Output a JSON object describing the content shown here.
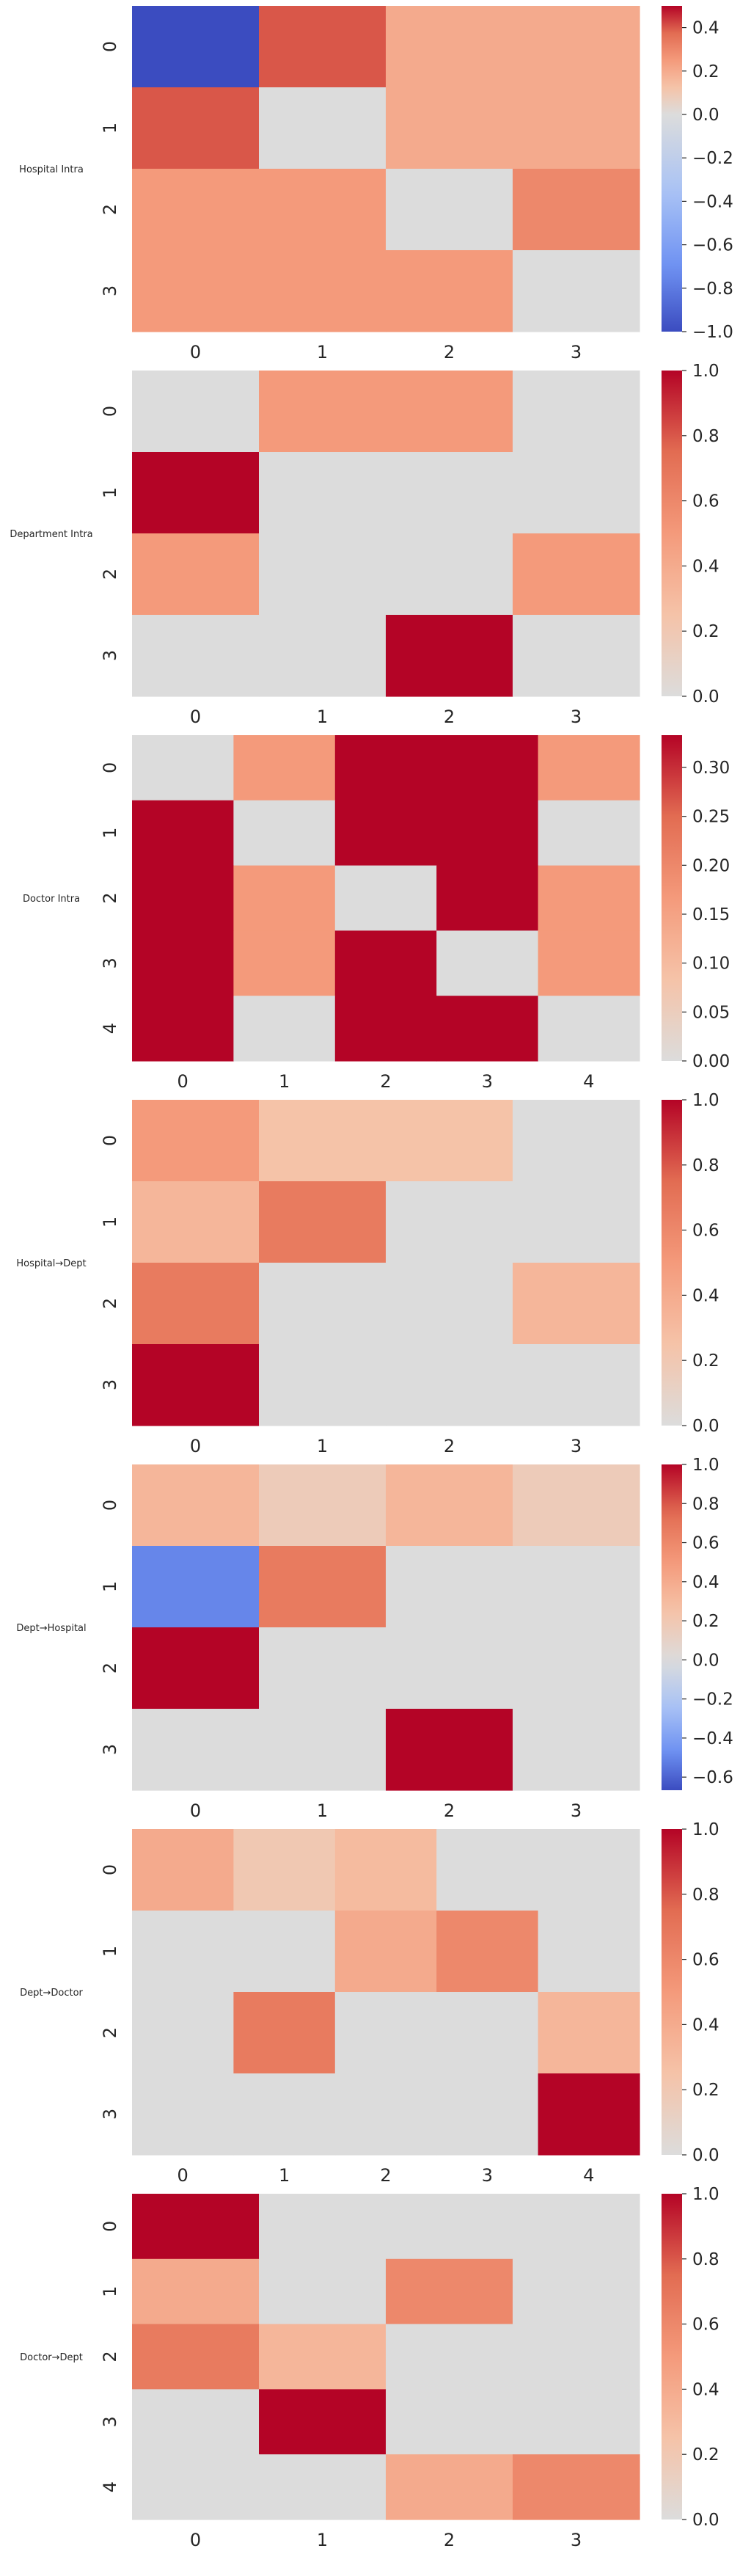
{
  "colors": {
    "neutral": "#dcdcdc",
    "cbar_ticks": "#262626",
    "diverging_low": "#3b4cc0",
    "diverging_high": "#b40426"
  },
  "chart_data": [
    {
      "type": "heatmap",
      "row_label": "Hospital Intra",
      "colormap": "coolwarm",
      "vmin": -1.0,
      "vmax": 0.5,
      "x_ticks": [
        "0",
        "1",
        "2",
        "3"
      ],
      "y_ticks": [
        "0",
        "1",
        "2",
        "3"
      ],
      "values": [
        [
          -1.0,
          0.4,
          0.2,
          0.2
        ],
        [
          0.4,
          0.0,
          0.2,
          0.2
        ],
        [
          0.25,
          0.25,
          0.0,
          0.3
        ],
        [
          0.25,
          0.25,
          0.25,
          0.0
        ]
      ],
      "colorbar_ticks": [
        "0.4",
        "0.2",
        "0.0",
        "−0.2",
        "−0.4",
        "−0.6",
        "−0.8",
        "−1.0"
      ],
      "colorbar_tick_values": [
        0.4,
        0.2,
        0.0,
        -0.2,
        -0.4,
        -0.6,
        -0.8,
        -1.0
      ]
    },
    {
      "type": "heatmap",
      "row_label": "Department Intra",
      "colormap": "coolwarm-positive",
      "vmin": 0.0,
      "vmax": 1.0,
      "x_ticks": [
        "0",
        "1",
        "2",
        "3"
      ],
      "y_ticks": [
        "0",
        "1",
        "2",
        "3"
      ],
      "values": [
        [
          0.0,
          0.5,
          0.5,
          0.0
        ],
        [
          1.0,
          0.0,
          0.0,
          0.0
        ],
        [
          0.5,
          0.0,
          0.0,
          0.5
        ],
        [
          0.0,
          0.0,
          1.0,
          0.0
        ]
      ],
      "colorbar_ticks": [
        "1.0",
        "0.8",
        "0.6",
        "0.4",
        "0.2",
        "0.0"
      ],
      "colorbar_tick_values": [
        1.0,
        0.8,
        0.6,
        0.4,
        0.2,
        0.0
      ]
    },
    {
      "type": "heatmap",
      "row_label": "Doctor Intra",
      "colormap": "coolwarm-positive",
      "vmin": 0.0,
      "vmax": 0.333,
      "x_ticks": [
        "0",
        "1",
        "2",
        "3",
        "4"
      ],
      "y_ticks": [
        "0",
        "1",
        "2",
        "3",
        "4"
      ],
      "values": [
        [
          0.0,
          0.167,
          0.333,
          0.333,
          0.167
        ],
        [
          0.333,
          0.0,
          0.333,
          0.333,
          0.0
        ],
        [
          0.333,
          0.167,
          0.0,
          0.333,
          0.167
        ],
        [
          0.333,
          0.167,
          0.333,
          0.0,
          0.167
        ],
        [
          0.333,
          0.0,
          0.333,
          0.333,
          0.0
        ]
      ],
      "colorbar_ticks": [
        "0.30",
        "0.25",
        "0.20",
        "0.15",
        "0.10",
        "0.05",
        "0.00"
      ],
      "colorbar_tick_values": [
        0.3,
        0.25,
        0.2,
        0.15,
        0.1,
        0.05,
        0.0
      ]
    },
    {
      "type": "heatmap",
      "row_label": "Hospital→Dept",
      "colormap": "coolwarm-positive",
      "vmin": 0.0,
      "vmax": 1.0,
      "x_ticks": [
        "0",
        "1",
        "2",
        "3"
      ],
      "y_ticks": [
        "0",
        "1",
        "2",
        "3"
      ],
      "values": [
        [
          0.5,
          0.25,
          0.25,
          0.0
        ],
        [
          0.33,
          0.67,
          0.0,
          0.0
        ],
        [
          0.67,
          0.0,
          0.0,
          0.33
        ],
        [
          1.0,
          0.0,
          0.0,
          0.0
        ]
      ],
      "colorbar_ticks": [
        "1.0",
        "0.8",
        "0.6",
        "0.4",
        "0.2",
        "0.0"
      ],
      "colorbar_tick_values": [
        1.0,
        0.8,
        0.6,
        0.4,
        0.2,
        0.0
      ]
    },
    {
      "type": "heatmap",
      "row_label": "Dept→Hospital",
      "colormap": "coolwarm",
      "vmin": -0.667,
      "vmax": 1.0,
      "x_ticks": [
        "0",
        "1",
        "2",
        "3"
      ],
      "y_ticks": [
        "0",
        "1",
        "2",
        "3"
      ],
      "values": [
        [
          0.33,
          0.17,
          0.33,
          0.17
        ],
        [
          -0.5,
          0.67,
          0.0,
          0.0
        ],
        [
          1.0,
          0.0,
          0.0,
          0.0
        ],
        [
          0.0,
          0.0,
          1.0,
          0.0
        ]
      ],
      "colorbar_ticks": [
        "1.0",
        "0.8",
        "0.6",
        "0.4",
        "0.2",
        "0.0",
        "−0.2",
        "−0.4",
        "−0.6"
      ],
      "colorbar_tick_values": [
        1.0,
        0.8,
        0.6,
        0.4,
        0.2,
        0.0,
        -0.2,
        -0.4,
        -0.6
      ]
    },
    {
      "type": "heatmap",
      "row_label": "Dept→Doctor",
      "colormap": "coolwarm-positive",
      "vmin": 0.0,
      "vmax": 1.0,
      "x_ticks": [
        "0",
        "1",
        "2",
        "3",
        "4"
      ],
      "y_ticks": [
        "0",
        "1",
        "2",
        "3"
      ],
      "values": [
        [
          0.4,
          0.2,
          0.3,
          0.0,
          0.0
        ],
        [
          0.0,
          0.0,
          0.4,
          0.6,
          0.0
        ],
        [
          0.0,
          0.67,
          0.0,
          0.0,
          0.33
        ],
        [
          0.0,
          0.0,
          0.0,
          0.0,
          1.0
        ]
      ],
      "colorbar_ticks": [
        "1.0",
        "0.8",
        "0.6",
        "0.4",
        "0.2",
        "0.0"
      ],
      "colorbar_tick_values": [
        1.0,
        0.8,
        0.6,
        0.4,
        0.2,
        0.0
      ]
    },
    {
      "type": "heatmap",
      "row_label": "Doctor→Dept",
      "colormap": "coolwarm-positive",
      "vmin": 0.0,
      "vmax": 1.0,
      "x_ticks": [
        "0",
        "1",
        "2",
        "3"
      ],
      "y_ticks": [
        "0",
        "1",
        "2",
        "3",
        "4"
      ],
      "values": [
        [
          1.0,
          0.0,
          0.0,
          0.0
        ],
        [
          0.4,
          0.0,
          0.6,
          0.0
        ],
        [
          0.67,
          0.33,
          0.0,
          0.0
        ],
        [
          0.0,
          1.0,
          0.0,
          0.0
        ],
        [
          0.0,
          0.0,
          0.4,
          0.6
        ]
      ],
      "colorbar_ticks": [
        "1.0",
        "0.8",
        "0.6",
        "0.4",
        "0.2",
        "0.0"
      ],
      "colorbar_tick_values": [
        1.0,
        0.8,
        0.6,
        0.4,
        0.2,
        0.0
      ]
    }
  ]
}
